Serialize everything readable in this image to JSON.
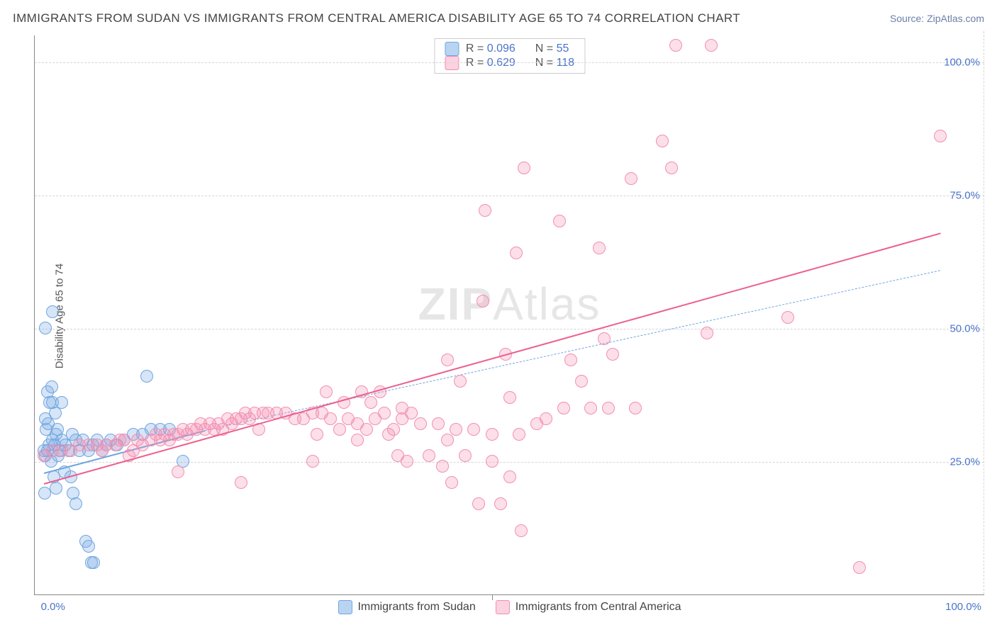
{
  "header": {
    "title": "IMMIGRANTS FROM SUDAN VS IMMIGRANTS FROM CENTRAL AMERICA DISABILITY AGE 65 TO 74 CORRELATION CHART",
    "source_prefix": "Source: ",
    "source": "ZipAtlas.com"
  },
  "ylabel": "Disability Age 65 to 74",
  "watermark": {
    "bold": "ZIP",
    "rest": "Atlas"
  },
  "axes": {
    "xmin": -1,
    "xmax": 105,
    "ymin": 0,
    "ymax": 105,
    "yticks": [
      {
        "v": 25,
        "label": "25.0%"
      },
      {
        "v": 50,
        "label": "50.0%"
      },
      {
        "v": 75,
        "label": "75.0%"
      },
      {
        "v": 100,
        "label": "100.0%"
      }
    ],
    "xtick_left": {
      "v": 0,
      "label": "0.0%"
    },
    "xtick_right": {
      "v": 100,
      "label": "100.0%"
    },
    "xtick_mid": {
      "v": 50
    }
  },
  "colors": {
    "bg": "#ffffff",
    "axis": "#888888",
    "grid": "#d5d5d5",
    "tick_text": "#4a74c9",
    "label_text": "#555555",
    "title_text": "#444444",
    "source_text": "#6b7fa8",
    "watermark": "#e6e6e6"
  },
  "series": [
    {
      "key": "sudan",
      "label": "Immigrants from Sudan",
      "color_fill": "rgba(120,170,230,0.30)",
      "color_stroke": "#6fa5e0",
      "legend_swatch_fill": "#b9d4f1",
      "legend_swatch_border": "#6fa5e0",
      "marker_radius": 9,
      "stats": {
        "R": "0.096",
        "N": "55"
      },
      "regression": {
        "x1": 0,
        "y1": 23,
        "x2": 18,
        "y2": 31,
        "width": 2,
        "dash": "none",
        "extrap_to": 100,
        "extrap_y": 61,
        "extrap_dash": "5,4",
        "extrap_width": 1
      },
      "points": [
        [
          0,
          27
        ],
        [
          0.2,
          26
        ],
        [
          0.4,
          27
        ],
        [
          0.6,
          28
        ],
        [
          0.8,
          25
        ],
        [
          1.0,
          29
        ],
        [
          1.2,
          28
        ],
        [
          1.4,
          30
        ],
        [
          1.6,
          26
        ],
        [
          1.8,
          27
        ],
        [
          0.5,
          32
        ],
        [
          0.7,
          36
        ],
        [
          1.0,
          36
        ],
        [
          1.3,
          34
        ],
        [
          0.3,
          31
        ],
        [
          0.2,
          33
        ],
        [
          0.4,
          38
        ],
        [
          0.9,
          39
        ],
        [
          1.5,
          31
        ],
        [
          2.0,
          29
        ],
        [
          2.4,
          28
        ],
        [
          2.8,
          27
        ],
        [
          3.2,
          30
        ],
        [
          3.6,
          29
        ],
        [
          4.0,
          27
        ],
        [
          4.4,
          29
        ],
        [
          5.0,
          27
        ],
        [
          5.5,
          28
        ],
        [
          6.0,
          29
        ],
        [
          6.5,
          27
        ],
        [
          7.0,
          28
        ],
        [
          7.5,
          29
        ],
        [
          8.2,
          28
        ],
        [
          9.0,
          29
        ],
        [
          10.0,
          30
        ],
        [
          11.0,
          30
        ],
        [
          12.0,
          31
        ],
        [
          13.0,
          31
        ],
        [
          14.0,
          31
        ],
        [
          15.5,
          25
        ],
        [
          1.1,
          22
        ],
        [
          1.4,
          20
        ],
        [
          2.3,
          23
        ],
        [
          3.0,
          22
        ],
        [
          3.3,
          19
        ],
        [
          3.6,
          17
        ],
        [
          4.7,
          10
        ],
        [
          5.0,
          9
        ],
        [
          5.3,
          6
        ],
        [
          5.6,
          6
        ],
        [
          0.2,
          50
        ],
        [
          1.0,
          53
        ],
        [
          2.0,
          36
        ],
        [
          0.1,
          19
        ],
        [
          11.5,
          41
        ]
      ]
    },
    {
      "key": "cam",
      "label": "Immigrants from Central America",
      "color_fill": "rgba(244,140,175,0.28)",
      "color_stroke": "#f18fb0",
      "legend_swatch_fill": "#fbd2df",
      "legend_swatch_border": "#f18fb0",
      "marker_radius": 9,
      "stats": {
        "R": "0.629",
        "N": "118"
      },
      "regression": {
        "x1": 0,
        "y1": 21,
        "x2": 100,
        "y2": 68,
        "width": 2.4,
        "dash": "none",
        "color_override": "#ec5f8f"
      },
      "points": [
        [
          0,
          26
        ],
        [
          1,
          27
        ],
        [
          2,
          27
        ],
        [
          3,
          27
        ],
        [
          4,
          28
        ],
        [
          5,
          28
        ],
        [
          6,
          28
        ],
        [
          6.5,
          27
        ],
        [
          7,
          28
        ],
        [
          8,
          28
        ],
        [
          8.5,
          29
        ],
        [
          9,
          29
        ],
        [
          9.5,
          26
        ],
        [
          10,
          27
        ],
        [
          10.5,
          29
        ],
        [
          11,
          28
        ],
        [
          12,
          29
        ],
        [
          12.5,
          30
        ],
        [
          13,
          29
        ],
        [
          13.5,
          30
        ],
        [
          14,
          29
        ],
        [
          14.5,
          30
        ],
        [
          15,
          30
        ],
        [
          15.5,
          31
        ],
        [
          16,
          30
        ],
        [
          16.5,
          31
        ],
        [
          17,
          31
        ],
        [
          17.5,
          32
        ],
        [
          18,
          31
        ],
        [
          18.5,
          32
        ],
        [
          19,
          31
        ],
        [
          19.5,
          32
        ],
        [
          20,
          31
        ],
        [
          20.5,
          33
        ],
        [
          21,
          32
        ],
        [
          21.5,
          33
        ],
        [
          22,
          33
        ],
        [
          22.5,
          34
        ],
        [
          23,
          33
        ],
        [
          23.5,
          34
        ],
        [
          24,
          31
        ],
        [
          24.5,
          34
        ],
        [
          25,
          34
        ],
        [
          26,
          34
        ],
        [
          27,
          34
        ],
        [
          28,
          33
        ],
        [
          29,
          33
        ],
        [
          30,
          34
        ],
        [
          30.5,
          30
        ],
        [
          31,
          34
        ],
        [
          31.5,
          38
        ],
        [
          32,
          33
        ],
        [
          33,
          31
        ],
        [
          33.5,
          36
        ],
        [
          34,
          33
        ],
        [
          35,
          32
        ],
        [
          35.5,
          38
        ],
        [
          36,
          31
        ],
        [
          36.5,
          36
        ],
        [
          37,
          33
        ],
        [
          37.5,
          38
        ],
        [
          38,
          34
        ],
        [
          38.5,
          30
        ],
        [
          39,
          31
        ],
        [
          39.5,
          26
        ],
        [
          40,
          33
        ],
        [
          40.5,
          25
        ],
        [
          41,
          34
        ],
        [
          42,
          32
        ],
        [
          43,
          26
        ],
        [
          44,
          32
        ],
        [
          44.5,
          24
        ],
        [
          45,
          44
        ],
        [
          45.5,
          21
        ],
        [
          46,
          31
        ],
        [
          46.5,
          40
        ],
        [
          47,
          26
        ],
        [
          48,
          31
        ],
        [
          48.5,
          17
        ],
        [
          49,
          55
        ],
        [
          49.2,
          72
        ],
        [
          50,
          30
        ],
        [
          51,
          17
        ],
        [
          51.5,
          45
        ],
        [
          52,
          37
        ],
        [
          52.7,
          64
        ],
        [
          53,
          30
        ],
        [
          53.3,
          12
        ],
        [
          53.6,
          80
        ],
        [
          55,
          32
        ],
        [
          56,
          33
        ],
        [
          57.5,
          70
        ],
        [
          58,
          35
        ],
        [
          58.8,
          44
        ],
        [
          60,
          40
        ],
        [
          61,
          35
        ],
        [
          62,
          65
        ],
        [
          62.5,
          48
        ],
        [
          63,
          35
        ],
        [
          63.5,
          45
        ],
        [
          65.5,
          78
        ],
        [
          66,
          35
        ],
        [
          69,
          85
        ],
        [
          70,
          80
        ],
        [
          70.5,
          103
        ],
        [
          74,
          49
        ],
        [
          74.5,
          103
        ],
        [
          83,
          52
        ],
        [
          91,
          5
        ],
        [
          100,
          86
        ],
        [
          15,
          23
        ],
        [
          22,
          21
        ],
        [
          30,
          25
        ],
        [
          35,
          29
        ],
        [
          40,
          35
        ],
        [
          45,
          29
        ],
        [
          50,
          25
        ],
        [
          52,
          22
        ]
      ]
    }
  ],
  "legend_top": {
    "border": "#cccccc"
  },
  "legend_bottom": {}
}
